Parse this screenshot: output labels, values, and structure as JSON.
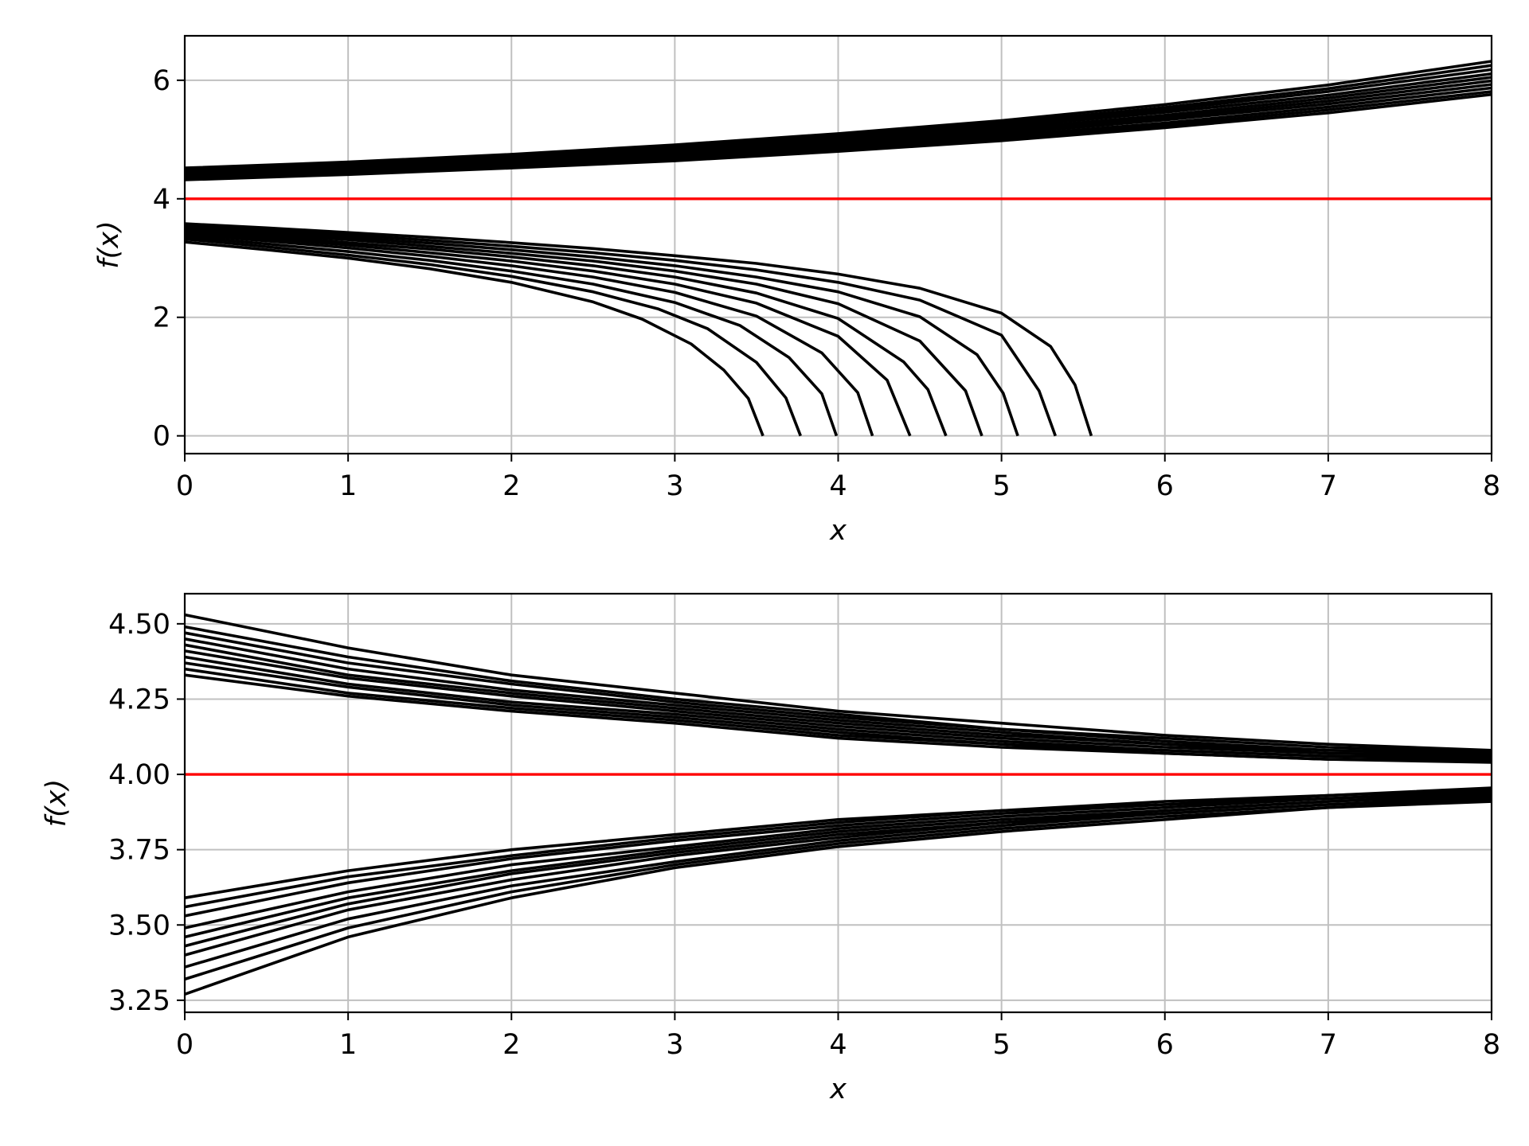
{
  "chart_data": [
    {
      "type": "line",
      "xlabel": "x",
      "ylabel": "f(x)",
      "xlim": [
        0,
        8
      ],
      "ylim": [
        -0.3,
        6.75
      ],
      "xticks": [
        "0",
        "1",
        "2",
        "3",
        "4",
        "5",
        "6",
        "7",
        "8"
      ],
      "yticks": [
        "0",
        "2",
        "4",
        "6"
      ],
      "grid": true,
      "reference_line": {
        "y": 4,
        "color": "#ff0000"
      },
      "series_color": "#000000",
      "series": [
        {
          "x": [
            0,
            1,
            2,
            3,
            4,
            5,
            6,
            7,
            8
          ],
          "y": [
            4.32,
            4.41,
            4.52,
            4.64,
            4.8,
            4.98,
            5.2,
            5.45,
            5.76
          ]
        },
        {
          "x": [
            0,
            1,
            2,
            3,
            4,
            5,
            6,
            7,
            8
          ],
          "y": [
            4.35,
            4.44,
            4.55,
            4.68,
            4.84,
            5.02,
            5.24,
            5.5,
            5.81
          ]
        },
        {
          "x": [
            0,
            1,
            2,
            3,
            4,
            5,
            6,
            7,
            8
          ],
          "y": [
            4.37,
            4.46,
            4.58,
            4.71,
            4.87,
            5.06,
            5.28,
            5.55,
            5.87
          ]
        },
        {
          "x": [
            0,
            1,
            2,
            3,
            4,
            5,
            6,
            7,
            8
          ],
          "y": [
            4.39,
            4.49,
            4.6,
            4.74,
            4.9,
            5.1,
            5.33,
            5.6,
            5.93
          ]
        },
        {
          "x": [
            0,
            1,
            2,
            3,
            4,
            5,
            6,
            7,
            8
          ],
          "y": [
            4.41,
            4.51,
            4.63,
            4.77,
            4.94,
            5.14,
            5.37,
            5.65,
            5.99
          ]
        },
        {
          "x": [
            0,
            1,
            2,
            3,
            4,
            5,
            6,
            7,
            8
          ],
          "y": [
            4.43,
            4.53,
            4.65,
            4.79,
            4.97,
            5.17,
            5.41,
            5.7,
            6.05
          ]
        },
        {
          "x": [
            0,
            1,
            2,
            3,
            4,
            5,
            6,
            7,
            8
          ],
          "y": [
            4.45,
            4.55,
            4.68,
            4.82,
            5.0,
            5.21,
            5.46,
            5.75,
            6.11
          ]
        },
        {
          "x": [
            0,
            1,
            2,
            3,
            4,
            5,
            6,
            7,
            8
          ],
          "y": [
            4.47,
            4.57,
            4.7,
            4.85,
            5.03,
            5.25,
            5.5,
            5.81,
            6.18
          ]
        },
        {
          "x": [
            0,
            1,
            2,
            3,
            4,
            5,
            6,
            7,
            8
          ],
          "y": [
            4.49,
            4.6,
            4.72,
            4.88,
            5.06,
            5.28,
            5.54,
            5.86,
            6.25
          ]
        },
        {
          "x": [
            0,
            1,
            2,
            3,
            4,
            5,
            6,
            7,
            8
          ],
          "y": [
            4.52,
            4.62,
            4.75,
            4.91,
            5.1,
            5.32,
            5.59,
            5.92,
            6.32
          ]
        },
        {
          "x": [
            0,
            0.5,
            1,
            1.5,
            2,
            2.5,
            2.8,
            3.1,
            3.3,
            3.45,
            3.54
          ],
          "y": [
            3.27,
            3.14,
            3.0,
            2.82,
            2.59,
            2.26,
            1.97,
            1.55,
            1.11,
            0.63,
            0
          ]
        },
        {
          "x": [
            0,
            0.5,
            1,
            1.5,
            2,
            2.5,
            2.9,
            3.2,
            3.5,
            3.68,
            3.77
          ],
          "y": [
            3.32,
            3.19,
            3.05,
            2.89,
            2.69,
            2.43,
            2.14,
            1.81,
            1.24,
            0.64,
            0
          ]
        },
        {
          "x": [
            0,
            0.5,
            1,
            1.5,
            2,
            2.5,
            3,
            3.4,
            3.7,
            3.9,
            3.99
          ],
          "y": [
            3.36,
            3.24,
            3.11,
            2.96,
            2.78,
            2.56,
            2.25,
            1.86,
            1.32,
            0.71,
            0
          ]
        },
        {
          "x": [
            0,
            0.5,
            1,
            1.5,
            2,
            2.5,
            3,
            3.5,
            3.9,
            4.12,
            4.21
          ],
          "y": [
            3.4,
            3.29,
            3.17,
            3.03,
            2.87,
            2.68,
            2.42,
            2.02,
            1.4,
            0.73,
            0
          ]
        },
        {
          "x": [
            0,
            0.5,
            1,
            1.5,
            2,
            2.5,
            3,
            3.5,
            4.0,
            4.3,
            4.44
          ],
          "y": [
            3.43,
            3.33,
            3.22,
            3.09,
            2.95,
            2.78,
            2.56,
            2.24,
            1.68,
            0.94,
            0
          ]
        },
        {
          "x": [
            0,
            0.5,
            1,
            1.5,
            2,
            2.5,
            3,
            3.5,
            4.0,
            4.4,
            4.55,
            4.66
          ],
          "y": [
            3.46,
            3.37,
            3.26,
            3.15,
            3.02,
            2.87,
            2.68,
            2.41,
            1.98,
            1.25,
            0.78,
            0
          ]
        },
        {
          "x": [
            0,
            0.5,
            1,
            1.5,
            2,
            2.5,
            3,
            3.5,
            4.0,
            4.5,
            4.78,
            4.88
          ],
          "y": [
            3.49,
            3.4,
            3.31,
            3.2,
            3.08,
            2.95,
            2.78,
            2.56,
            2.23,
            1.6,
            0.76,
            0
          ]
        },
        {
          "x": [
            0,
            0.5,
            1,
            1.5,
            2,
            2.5,
            3,
            3.5,
            4.0,
            4.5,
            4.85,
            5.01,
            5.1
          ],
          "y": [
            3.52,
            3.44,
            3.35,
            3.25,
            3.14,
            3.02,
            2.87,
            2.68,
            2.43,
            2.01,
            1.37,
            0.72,
            0
          ]
        },
        {
          "x": [
            0,
            0.5,
            1,
            1.5,
            2,
            2.5,
            3,
            3.5,
            4.0,
            4.5,
            5.0,
            5.23,
            5.33
          ],
          "y": [
            3.55,
            3.47,
            3.39,
            3.3,
            3.2,
            3.09,
            2.96,
            2.8,
            2.59,
            2.29,
            1.7,
            0.76,
            0
          ]
        },
        {
          "x": [
            0,
            0.5,
            1,
            1.5,
            2,
            2.5,
            3,
            3.5,
            4.0,
            4.5,
            5.0,
            5.3,
            5.45,
            5.55
          ],
          "y": [
            3.58,
            3.51,
            3.43,
            3.35,
            3.26,
            3.16,
            3.04,
            2.91,
            2.73,
            2.49,
            2.07,
            1.51,
            0.86,
            0
          ]
        }
      ]
    },
    {
      "type": "line",
      "xlabel": "x",
      "ylabel": "f(x)",
      "xlim": [
        0,
        8
      ],
      "ylim": [
        3.21,
        4.6
      ],
      "xticks": [
        "0",
        "1",
        "2",
        "3",
        "4",
        "5",
        "6",
        "7",
        "8"
      ],
      "yticks": [
        "3.25",
        "3.50",
        "3.75",
        "4.00",
        "4.25",
        "4.50"
      ],
      "grid": true,
      "reference_line": {
        "y": 4.0,
        "color": "#ff0000"
      },
      "series_color": "#000000",
      "series": [
        {
          "x": [
            0,
            1,
            2,
            3,
            4,
            5,
            6,
            7,
            8
          ],
          "y": [
            4.33,
            4.26,
            4.21,
            4.17,
            4.12,
            4.09,
            4.07,
            4.05,
            4.04
          ]
        },
        {
          "x": [
            0,
            1,
            2,
            3,
            4,
            5,
            6,
            7,
            8
          ],
          "y": [
            4.35,
            4.27,
            4.22,
            4.18,
            4.13,
            4.1,
            4.07,
            4.05,
            4.045
          ]
        },
        {
          "x": [
            0,
            1,
            2,
            3,
            4,
            5,
            6,
            7,
            8
          ],
          "y": [
            4.37,
            4.29,
            4.23,
            4.19,
            4.14,
            4.1,
            4.08,
            4.06,
            4.05
          ]
        },
        {
          "x": [
            0,
            1,
            2,
            3,
            4,
            5,
            6,
            7,
            8
          ],
          "y": [
            4.39,
            4.3,
            4.24,
            4.2,
            4.15,
            4.11,
            4.08,
            4.06,
            4.055
          ]
        },
        {
          "x": [
            0,
            1,
            2,
            3,
            4,
            5,
            6,
            7,
            8
          ],
          "y": [
            4.41,
            4.32,
            4.26,
            4.21,
            4.16,
            4.12,
            4.09,
            4.07,
            4.06
          ]
        },
        {
          "x": [
            0,
            1,
            2,
            3,
            4,
            5,
            6,
            7,
            8
          ],
          "y": [
            4.43,
            4.33,
            4.27,
            4.22,
            4.17,
            4.13,
            4.1,
            4.07,
            4.065
          ]
        },
        {
          "x": [
            0,
            1,
            2,
            3,
            4,
            5,
            6,
            7,
            8
          ],
          "y": [
            4.45,
            4.35,
            4.28,
            4.23,
            4.18,
            4.14,
            4.1,
            4.08,
            4.07
          ]
        },
        {
          "x": [
            0,
            1,
            2,
            3,
            4,
            5,
            6,
            7,
            8
          ],
          "y": [
            4.47,
            4.37,
            4.3,
            4.24,
            4.19,
            4.15,
            4.11,
            4.08,
            4.07
          ]
        },
        {
          "x": [
            0,
            1,
            2,
            3,
            4,
            5,
            6,
            7,
            8
          ],
          "y": [
            4.49,
            4.39,
            4.31,
            4.25,
            4.2,
            4.15,
            4.12,
            4.09,
            4.075
          ]
        },
        {
          "x": [
            0,
            1,
            2,
            3,
            4,
            5,
            6,
            7,
            8
          ],
          "y": [
            4.53,
            4.42,
            4.33,
            4.27,
            4.21,
            4.17,
            4.13,
            4.1,
            4.08
          ]
        },
        {
          "x": [
            0,
            1,
            2,
            3,
            4,
            5,
            6,
            7,
            8
          ],
          "y": [
            3.27,
            3.46,
            3.59,
            3.69,
            3.76,
            3.81,
            3.85,
            3.89,
            3.91
          ]
        },
        {
          "x": [
            0,
            1,
            2,
            3,
            4,
            5,
            6,
            7,
            8
          ],
          "y": [
            3.32,
            3.49,
            3.61,
            3.7,
            3.77,
            3.82,
            3.86,
            3.89,
            3.915
          ]
        },
        {
          "x": [
            0,
            1,
            2,
            3,
            4,
            5,
            6,
            7,
            8
          ],
          "y": [
            3.36,
            3.52,
            3.63,
            3.71,
            3.78,
            3.83,
            3.87,
            3.9,
            3.92
          ]
        },
        {
          "x": [
            0,
            1,
            2,
            3,
            4,
            5,
            6,
            7,
            8
          ],
          "y": [
            3.4,
            3.55,
            3.65,
            3.73,
            3.79,
            3.84,
            3.87,
            3.9,
            3.925
          ]
        },
        {
          "x": [
            0,
            1,
            2,
            3,
            4,
            5,
            6,
            7,
            8
          ],
          "y": [
            3.43,
            3.57,
            3.67,
            3.74,
            3.8,
            3.84,
            3.88,
            3.91,
            3.93
          ]
        },
        {
          "x": [
            0,
            1,
            2,
            3,
            4,
            5,
            6,
            7,
            8
          ],
          "y": [
            3.46,
            3.59,
            3.68,
            3.75,
            3.81,
            3.85,
            3.88,
            3.91,
            3.935
          ]
        },
        {
          "x": [
            0,
            1,
            2,
            3,
            4,
            5,
            6,
            7,
            8
          ],
          "y": [
            3.49,
            3.61,
            3.7,
            3.76,
            3.82,
            3.86,
            3.89,
            3.92,
            3.94
          ]
        },
        {
          "x": [
            0,
            1,
            2,
            3,
            4,
            5,
            6,
            7,
            8
          ],
          "y": [
            3.53,
            3.64,
            3.72,
            3.78,
            3.83,
            3.87,
            3.9,
            3.92,
            3.945
          ]
        },
        {
          "x": [
            0,
            1,
            2,
            3,
            4,
            5,
            6,
            7,
            8
          ],
          "y": [
            3.56,
            3.66,
            3.73,
            3.79,
            3.84,
            3.88,
            3.9,
            3.93,
            3.95
          ]
        },
        {
          "x": [
            0,
            1,
            2,
            3,
            4,
            5,
            6,
            7,
            8
          ],
          "y": [
            3.59,
            3.68,
            3.75,
            3.8,
            3.85,
            3.88,
            3.91,
            3.93,
            3.955
          ]
        }
      ]
    }
  ]
}
